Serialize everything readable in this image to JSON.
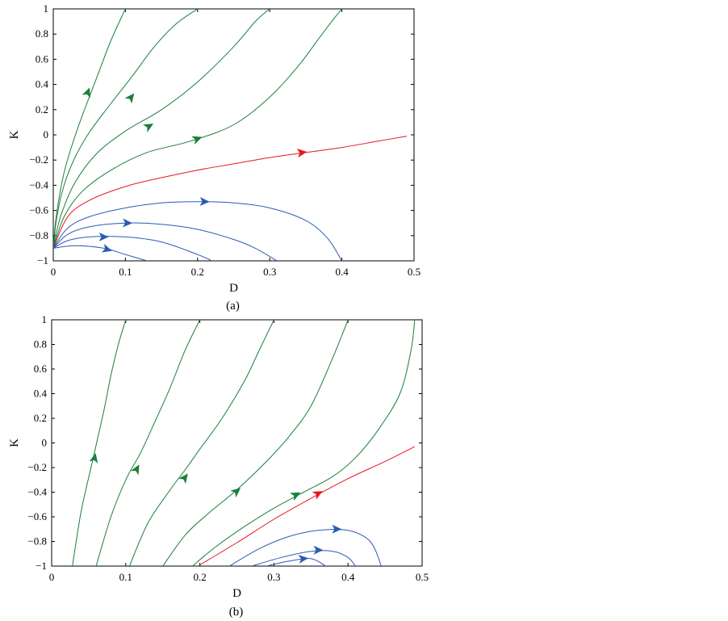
{
  "chart_data": [
    {
      "type": "line",
      "panel_label": "(a)",
      "xlabel": "D",
      "ylabel": "K",
      "xlim": [
        0,
        0.5
      ],
      "ylim": [
        -1,
        1
      ],
      "xticks": [
        "0",
        "0.1",
        "0.2",
        "0.3",
        "0.4",
        "0.5"
      ],
      "yticks": [
        "−1",
        "−0.8",
        "−0.6",
        "−0.4",
        "−0.2",
        "0",
        "0.2",
        "0.4",
        "0.6",
        "0.8",
        "1"
      ],
      "colors": {
        "green": "#1a7f3c",
        "red": "#e8141c",
        "blue": "#2a5bb0"
      },
      "series": [
        {
          "color": "green",
          "x": [
            0.0,
            0.003,
            0.008,
            0.015,
            0.025,
            0.04,
            0.06,
            0.08,
            0.1
          ],
          "y": [
            -0.9,
            -0.7,
            -0.5,
            -0.3,
            -0.1,
            0.15,
            0.45,
            0.75,
            1.0
          ],
          "arrows": [
            {
              "x": 0.048,
              "y": 0.34
            }
          ]
        },
        {
          "color": "green",
          "x": [
            0.0,
            0.005,
            0.015,
            0.03,
            0.05,
            0.08,
            0.11,
            0.14,
            0.17,
            0.2
          ],
          "y": [
            -0.9,
            -0.65,
            -0.4,
            -0.18,
            0.02,
            0.25,
            0.47,
            0.7,
            0.88,
            1.0
          ],
          "arrows": [
            {
              "x": 0.108,
              "y": 0.3
            }
          ]
        },
        {
          "color": "green",
          "x": [
            0.0,
            0.01,
            0.03,
            0.06,
            0.1,
            0.15,
            0.2,
            0.25,
            0.28,
            0.3
          ],
          "y": [
            -0.9,
            -0.65,
            -0.38,
            -0.15,
            0.03,
            0.2,
            0.42,
            0.7,
            0.9,
            1.0
          ],
          "arrows": [
            {
              "x": 0.133,
              "y": 0.07
            }
          ]
        },
        {
          "color": "green",
          "x": [
            0.0,
            0.015,
            0.04,
            0.08,
            0.13,
            0.19,
            0.25,
            0.3,
            0.34,
            0.37,
            0.39,
            0.4
          ],
          "y": [
            -0.9,
            -0.65,
            -0.45,
            -0.28,
            -0.14,
            -0.05,
            0.08,
            0.3,
            0.55,
            0.78,
            0.93,
            1.0
          ],
          "arrows": [
            {
              "x": 0.2,
              "y": -0.03
            }
          ]
        },
        {
          "color": "red",
          "x": [
            0.0,
            0.02,
            0.05,
            0.1,
            0.15,
            0.2,
            0.25,
            0.3,
            0.35,
            0.4,
            0.45,
            0.49
          ],
          "y": [
            -0.9,
            -0.65,
            -0.52,
            -0.41,
            -0.34,
            -0.28,
            -0.23,
            -0.18,
            -0.14,
            -0.1,
            -0.05,
            -0.01
          ],
          "arrows": [
            {
              "x": 0.345,
              "y": -0.14
            }
          ]
        },
        {
          "color": "blue",
          "x": [
            0.0,
            0.02,
            0.05,
            0.1,
            0.15,
            0.2,
            0.25,
            0.3,
            0.35,
            0.38,
            0.4
          ],
          "y": [
            -0.9,
            -0.74,
            -0.65,
            -0.58,
            -0.54,
            -0.53,
            -0.54,
            -0.58,
            -0.68,
            -0.82,
            -1.0
          ],
          "arrows": [
            {
              "x": 0.21,
              "y": -0.53
            }
          ]
        },
        {
          "color": "blue",
          "x": [
            0.0,
            0.02,
            0.05,
            0.1,
            0.15,
            0.2,
            0.25,
            0.28,
            0.31
          ],
          "y": [
            -0.9,
            -0.79,
            -0.73,
            -0.7,
            -0.71,
            -0.75,
            -0.83,
            -0.9,
            -1.0
          ],
          "arrows": [
            {
              "x": 0.103,
              "y": -0.7
            }
          ]
        },
        {
          "color": "blue",
          "x": [
            0.0,
            0.02,
            0.05,
            0.1,
            0.15,
            0.2,
            0.22
          ],
          "y": [
            -0.9,
            -0.84,
            -0.81,
            -0.81,
            -0.85,
            -0.95,
            -1.0
          ],
          "arrows": [
            {
              "x": 0.07,
              "y": -0.81
            }
          ]
        },
        {
          "color": "blue",
          "x": [
            0.0,
            0.03,
            0.07,
            0.1,
            0.13
          ],
          "y": [
            -0.9,
            -0.88,
            -0.9,
            -0.95,
            -1.0
          ],
          "arrows": [
            {
              "x": 0.075,
              "y": -0.91
            }
          ]
        }
      ]
    },
    {
      "type": "line",
      "panel_label": "(b)",
      "xlabel": "D",
      "ylabel": "K",
      "xlim": [
        0,
        0.5
      ],
      "ylim": [
        -1,
        1
      ],
      "xticks": [
        "0",
        "0.1",
        "0.2",
        "0.3",
        "0.4",
        "0.5"
      ],
      "yticks": [
        "−1",
        "−0.8",
        "−0.6",
        "−0.4",
        "−0.2",
        "0",
        "0.2",
        "0.4",
        "0.6",
        "0.8",
        "1"
      ],
      "colors": {
        "green": "#1a7f3c",
        "red": "#e8141c",
        "blue": "#2a5bb0"
      },
      "series": [
        {
          "color": "green",
          "x": [
            0.028,
            0.04,
            0.055,
            0.07,
            0.08,
            0.09,
            0.1
          ],
          "y": [
            -1.0,
            -0.55,
            -0.15,
            0.25,
            0.55,
            0.8,
            1.0
          ],
          "arrows": [
            {
              "x": 0.058,
              "y": -0.12
            }
          ]
        },
        {
          "color": "green",
          "x": [
            0.06,
            0.08,
            0.1,
            0.12,
            0.14,
            0.16,
            0.18,
            0.2
          ],
          "y": [
            -1.0,
            -0.6,
            -0.3,
            -0.08,
            0.18,
            0.45,
            0.75,
            1.0
          ],
          "arrows": [
            {
              "x": 0.115,
              "y": -0.21
            }
          ]
        },
        {
          "color": "green",
          "x": [
            0.105,
            0.13,
            0.16,
            0.18,
            0.2,
            0.23,
            0.26,
            0.28,
            0.3
          ],
          "y": [
            -1.0,
            -0.65,
            -0.38,
            -0.22,
            -0.05,
            0.2,
            0.5,
            0.75,
            1.0
          ],
          "arrows": [
            {
              "x": 0.18,
              "y": -0.28
            }
          ]
        },
        {
          "color": "green",
          "x": [
            0.15,
            0.18,
            0.21,
            0.25,
            0.29,
            0.32,
            0.35,
            0.38,
            0.4
          ],
          "y": [
            -1.0,
            -0.75,
            -0.58,
            -0.38,
            -0.15,
            0.05,
            0.3,
            0.7,
            1.0
          ],
          "arrows": [
            {
              "x": 0.25,
              "y": -0.39
            }
          ]
        },
        {
          "color": "green",
          "x": [
            0.19,
            0.22,
            0.26,
            0.3,
            0.34,
            0.38,
            0.41,
            0.44,
            0.47,
            0.485,
            0.49
          ],
          "y": [
            -1.0,
            -0.85,
            -0.68,
            -0.53,
            -0.4,
            -0.27,
            -0.12,
            0.1,
            0.4,
            0.75,
            1.0
          ],
          "arrows": [
            {
              "x": 0.33,
              "y": -0.42
            }
          ]
        },
        {
          "color": "red",
          "x": [
            0.2,
            0.25,
            0.3,
            0.35,
            0.4,
            0.45,
            0.49
          ],
          "y": [
            -0.99,
            -0.81,
            -0.62,
            -0.45,
            -0.29,
            -0.15,
            -0.03
          ],
          "arrows": [
            {
              "x": 0.36,
              "y": -0.41
            }
          ]
        },
        {
          "color": "blue",
          "x": [
            0.24,
            0.28,
            0.32,
            0.36,
            0.4,
            0.43,
            0.445
          ],
          "y": [
            -1.0,
            -0.86,
            -0.76,
            -0.71,
            -0.71,
            -0.8,
            -1.0
          ],
          "arrows": [
            {
              "x": 0.385,
              "y": -0.7
            }
          ]
        },
        {
          "color": "blue",
          "x": [
            0.27,
            0.31,
            0.35,
            0.38,
            0.4,
            0.41
          ],
          "y": [
            -1.0,
            -0.93,
            -0.88,
            -0.88,
            -0.93,
            -1.0
          ],
          "arrows": [
            {
              "x": 0.36,
              "y": -0.87
            }
          ]
        },
        {
          "color": "blue",
          "x": [
            0.29,
            0.32,
            0.35,
            0.37
          ],
          "y": [
            -1.0,
            -0.96,
            -0.94,
            -1.0
          ],
          "arrows": [
            {
              "x": 0.34,
              "y": -0.94
            }
          ]
        }
      ]
    }
  ]
}
